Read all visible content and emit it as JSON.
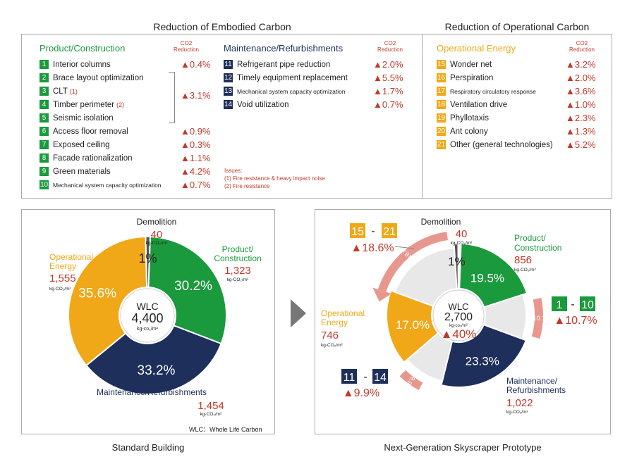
{
  "embodied": {
    "title": "Reduction of Embodied Carbon",
    "product_header": "Product/Construction",
    "maint_header": "Maintenance/Refurbishments",
    "co2_label_1": "CO2",
    "co2_label_2": "Reduction",
    "group_value": "▲3.1%",
    "product_items": [
      {
        "num": "1",
        "label": "Interior columns",
        "note": "",
        "value": "▲0.4%"
      },
      {
        "num": "2",
        "label": "Brace layout optimization",
        "note": "",
        "value": ""
      },
      {
        "num": "3",
        "label": "CLT",
        "note": "(1)",
        "value": ""
      },
      {
        "num": "4",
        "label": "Timber perimeter",
        "note": "(2)",
        "value": ""
      },
      {
        "num": "5",
        "label": "Seismic isolation",
        "note": "",
        "value": ""
      },
      {
        "num": "6",
        "label": "Access floor removal",
        "note": "",
        "value": "▲0.9%"
      },
      {
        "num": "7",
        "label": "Exposed ceiling",
        "note": "",
        "value": "▲0.3%"
      },
      {
        "num": "8",
        "label": "Facade rationalization",
        "note": "",
        "value": "▲1.1%"
      },
      {
        "num": "9",
        "label": "Green materials",
        "note": "",
        "value": "▲4.2%"
      },
      {
        "num": "10",
        "label": "Mechanical system capacity optimization",
        "note": "",
        "value": "▲0.7%"
      }
    ],
    "maint_items": [
      {
        "num": "11",
        "label": "Refrigerant pipe reduction",
        "value": "▲2.0%"
      },
      {
        "num": "12",
        "label": "Timely equipment replacement",
        "value": "▲5.5%"
      },
      {
        "num": "13",
        "label": "Mechanical system capacity optimization",
        "value": "▲1.7%"
      },
      {
        "num": "14",
        "label": "Void utilization",
        "value": "▲0.7%"
      }
    ],
    "issues_title": "Issues:",
    "issue_1": "(1) Fire resistance & heavy impact noise",
    "issue_2": "(2) Fire resistance"
  },
  "operational": {
    "title": "Reduction of Operational Carbon",
    "header": "Operational Energy",
    "co2_label_1": "CO2",
    "co2_label_2": "Reduction",
    "items": [
      {
        "num": "15",
        "label": "Wonder net",
        "value": "▲3.2%"
      },
      {
        "num": "16",
        "label": "Perspiration",
        "value": "▲2.0%"
      },
      {
        "num": "17",
        "label": "Respiratory circulatory response",
        "value": "▲3.6%"
      },
      {
        "num": "18",
        "label": "Ventilation drive",
        "value": "▲1.0%"
      },
      {
        "num": "19",
        "label": "Phyllotaxis",
        "value": "▲2.3%"
      },
      {
        "num": "20",
        "label": "Ant colony",
        "value": "▲1.3%"
      },
      {
        "num": "21",
        "label": "Other (general technologies)",
        "value": "▲5.2%"
      }
    ]
  },
  "chart_data": [
    {
      "type": "pie",
      "caption": "Standard Building",
      "center_label": "WLC",
      "center_value": "4,400",
      "center_unit": "kg-co₂/m²",
      "footnote": "WLC：Whole Life Carbon",
      "unit": "kg-CO₂/m²",
      "slices": [
        {
          "name": "Product/ Construction",
          "value": 1323,
          "value_label": "1,323",
          "percent_label": "30.2%",
          "color": "#1a9a3c"
        },
        {
          "name": "Maintenance/Refurbishments",
          "value": 1454,
          "value_label": "1,454",
          "percent_label": "33.2%",
          "color": "#1d2f5a"
        },
        {
          "name": "Operational Energy",
          "value": 1555,
          "value_label": "1,555",
          "percent_label": "35.6%",
          "color": "#f0a818"
        },
        {
          "name": "Demolition",
          "value": 40,
          "value_label": "40",
          "percent_label": "1%",
          "color": "#555555"
        }
      ]
    },
    {
      "type": "pie",
      "caption": "Next-Generation Skyscraper Prototype",
      "center_label": "WLC",
      "center_value": "2,700",
      "center_unit": "kg-co₂/m²",
      "center_reduction": "▲40%",
      "unit": "kg-CO₂/m²",
      "scale_total": 4400,
      "slices": [
        {
          "name": "Product/ Construction",
          "value": 856,
          "value_label": "856",
          "percent_label": "19.5%",
          "color": "#1a9a3c"
        },
        {
          "name": "Maintenance/ Refurbishments",
          "value": 1022,
          "value_label": "1,022",
          "percent_label": "23.3%",
          "color": "#1d2f5a"
        },
        {
          "name": "Operational Energy",
          "value": 746,
          "value_label": "746",
          "percent_label": "17.0%",
          "color": "#f0a818"
        },
        {
          "name": "Demolition",
          "value": 40,
          "value_label": "40",
          "percent_label": "1%",
          "color": "#555555"
        }
      ],
      "reductions": [
        {
          "range_from": "15",
          "range_to": "21",
          "value": "▲18.6%",
          "arc_label": "18.6%"
        },
        {
          "range_from": "1",
          "range_to": "10",
          "value": "▲10.7%",
          "arc_label": "10.7%"
        },
        {
          "range_from": "11",
          "range_to": "14",
          "value": "▲9.9%",
          "arc_label": "9.9%"
        }
      ]
    }
  ]
}
